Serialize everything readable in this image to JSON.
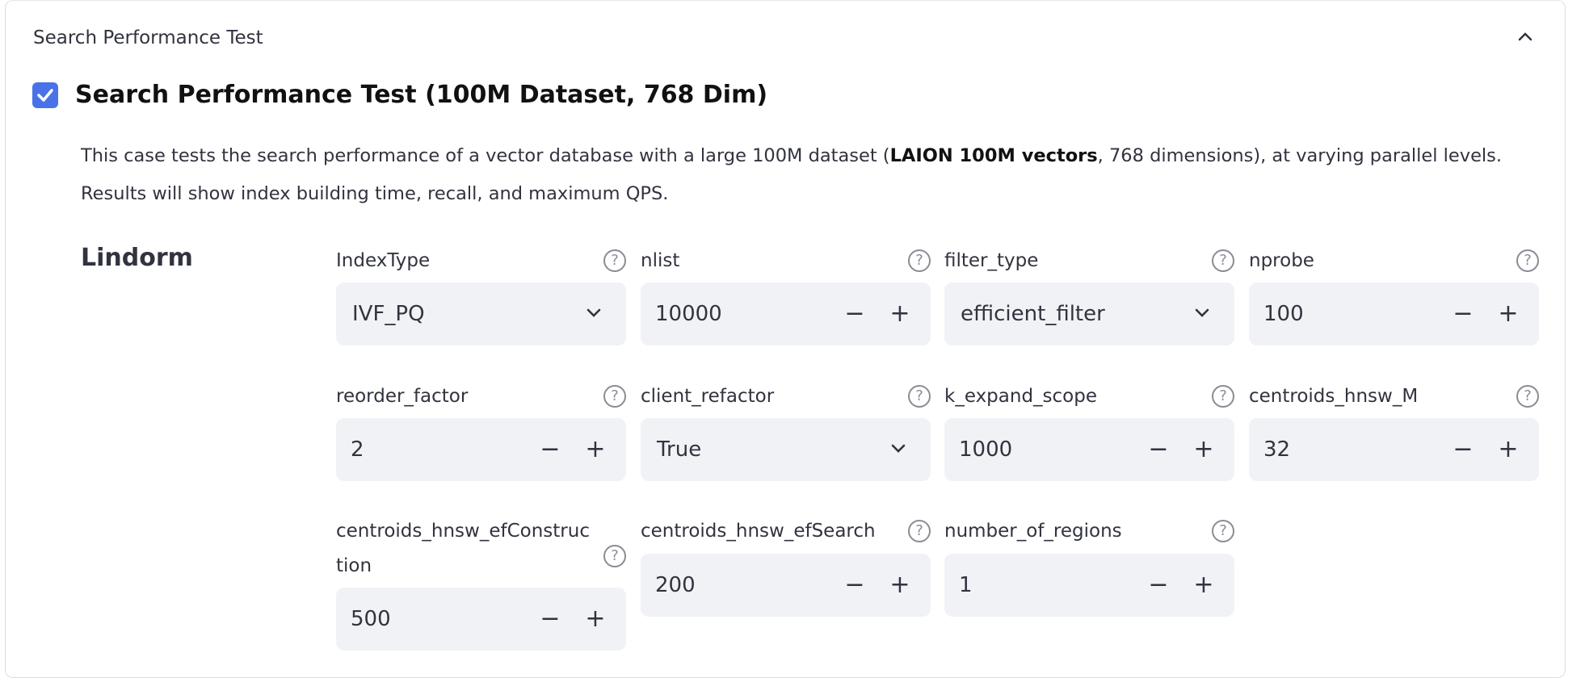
{
  "expander": {
    "title": "Search Performance Test",
    "expanded": true
  },
  "case": {
    "checked": true,
    "title": "Search Performance Test (100M Dataset, 768 Dim)",
    "desc_pre": "This case tests the search performance of a vector database with a large 100M dataset (",
    "desc_bold": "LAION 100M vectors",
    "desc_post": ", 768 dimensions), at varying parallel levels.",
    "desc_line2": "Results will show index building time, recall, and maximum QPS."
  },
  "db": "Lindorm",
  "fields": [
    {
      "label": "IndexType",
      "type": "select",
      "value": "IVF_PQ"
    },
    {
      "label": "nlist",
      "type": "number",
      "value": "10000"
    },
    {
      "label": "filter_type",
      "type": "select",
      "value": "efficient_filter"
    },
    {
      "label": "nprobe",
      "type": "number",
      "value": "100"
    },
    {
      "label": "reorder_factor",
      "type": "number",
      "value": "2"
    },
    {
      "label": "client_refactor",
      "type": "select",
      "value": "True"
    },
    {
      "label": "k_expand_scope",
      "type": "number",
      "value": "1000"
    },
    {
      "label": "centroids_hnsw_M",
      "type": "number",
      "value": "32"
    },
    {
      "label": "centroids_hnsw_efConstruction",
      "type": "number",
      "value": "500"
    },
    {
      "label": "centroids_hnsw_efSearch",
      "type": "number",
      "value": "200"
    },
    {
      "label": "number_of_regions",
      "type": "number",
      "value": "1",
      "minus_disabled": true
    }
  ],
  "icons": {
    "help": "?",
    "minus": "−",
    "plus": "+"
  },
  "colors": {
    "accent": "#4a72e8",
    "input_bg": "#f0f2f6"
  }
}
